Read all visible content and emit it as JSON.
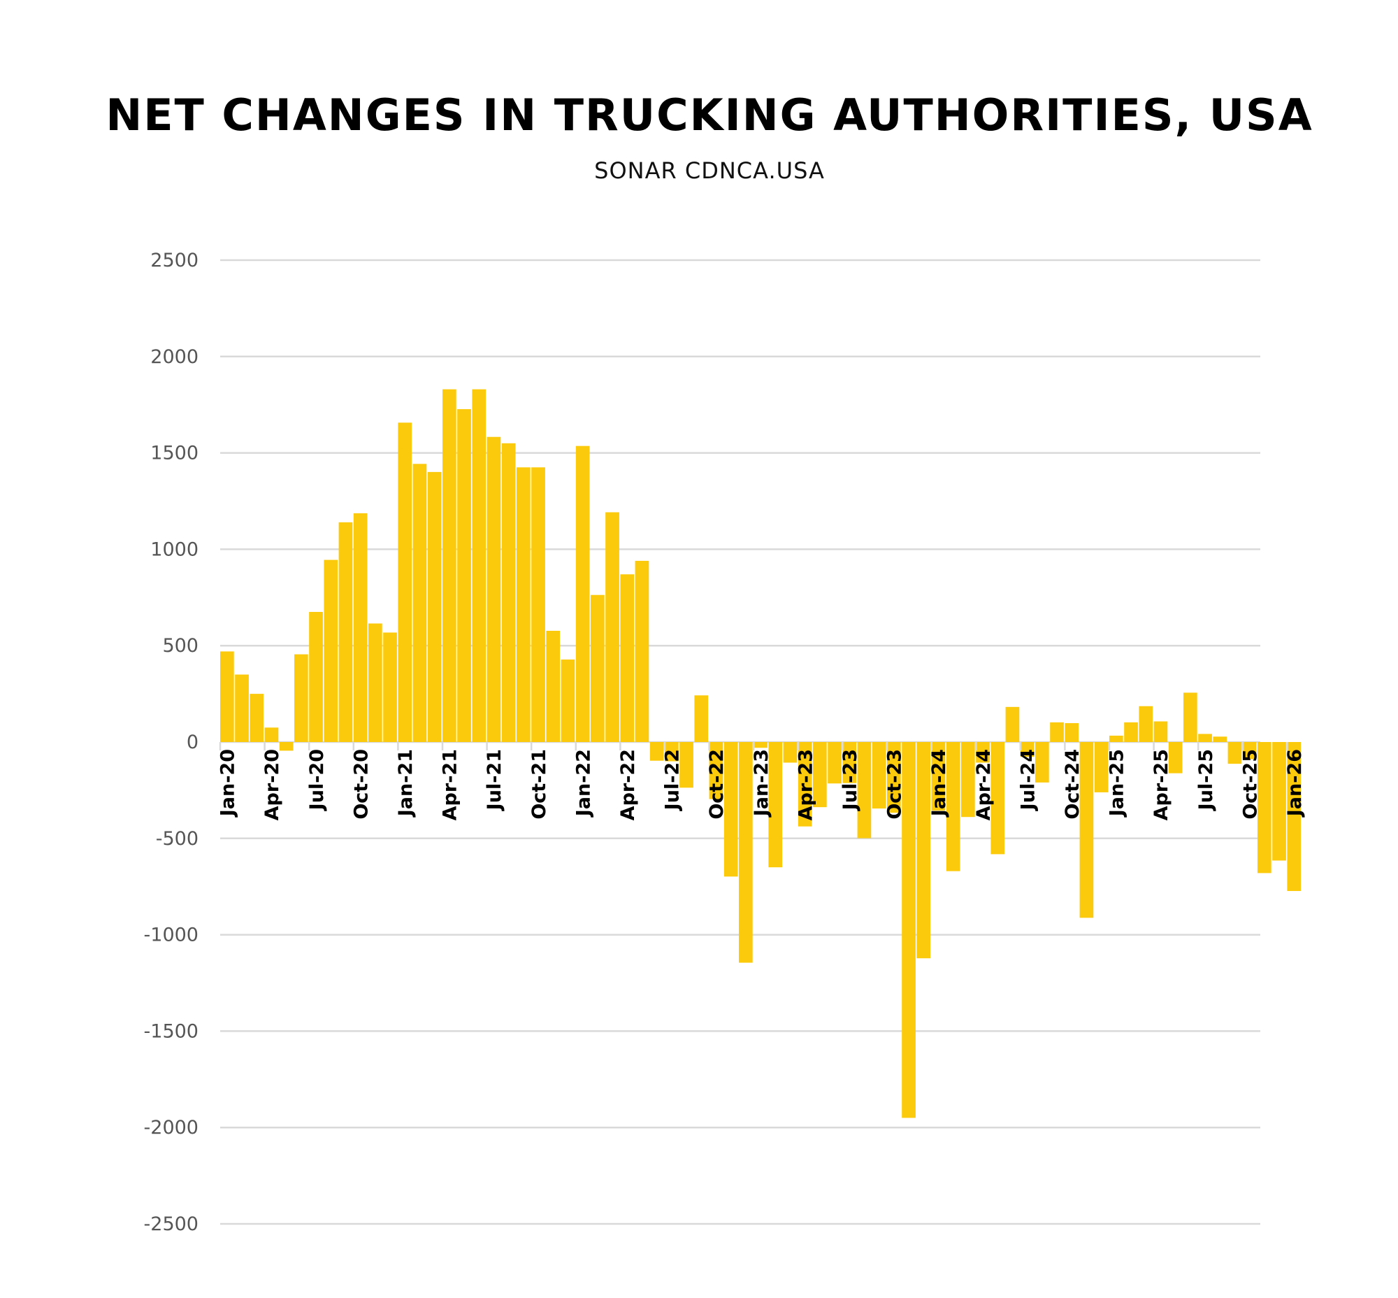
{
  "chart_data": {
    "type": "bar",
    "title": "NET CHANGES IN TRUCKING AUTHORITIES, USA",
    "subtitle": "SONAR CDNCA.USA",
    "xlabel": "",
    "ylabel": "",
    "ylim": [
      -2500,
      2500
    ],
    "yticks": [
      2500,
      2000,
      1500,
      1000,
      500,
      0,
      -500,
      -1000,
      -1500,
      -2000,
      -2500
    ],
    "grid": true,
    "bar_color": "#FCCA0C",
    "xtick_labels": [
      "Jan-20",
      "Apr-20",
      "Jul-20",
      "Oct-20",
      "Jan-21",
      "Apr-21",
      "Jul-21",
      "Oct-21",
      "Jan-22",
      "Apr-22",
      "Jul-22",
      "Oct-22",
      "Jan-23",
      "Apr-23",
      "Jul-23",
      "Oct-23",
      "Jan-24",
      "Apr-24",
      "Jul-24",
      "Oct-24",
      "Jan-25",
      "Apr-25",
      "Jul-25",
      "Oct-25",
      "Jan-26"
    ],
    "start_month": "Jan-20",
    "values": [
      470,
      350,
      250,
      75,
      -45,
      455,
      675,
      945,
      1140,
      1187,
      615,
      568,
      1657,
      1443,
      1401,
      1830,
      1727,
      1830,
      1583,
      1550,
      1425,
      1425,
      577,
      428,
      1536,
      763,
      1192,
      870,
      940,
      -97,
      -100,
      -237,
      242,
      -296,
      -698,
      -1145,
      -30,
      -650,
      -107,
      -438,
      -338,
      -215,
      -213,
      -499,
      -345,
      -367,
      -1950,
      -1122,
      -356,
      -670,
      -389,
      -107,
      -582,
      182,
      -77,
      -210,
      102,
      98,
      -912,
      -261,
      33,
      102,
      186,
      107,
      -162,
      256,
      42,
      28,
      -113,
      -89,
      -680,
      -615,
      -773
    ]
  }
}
